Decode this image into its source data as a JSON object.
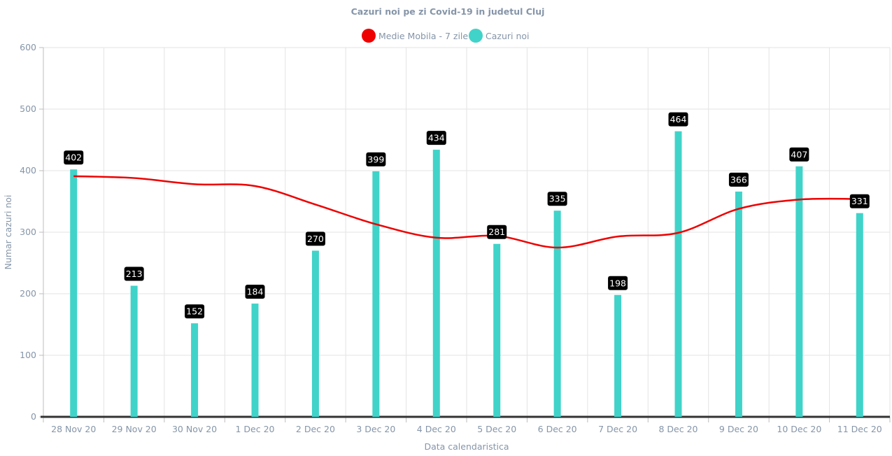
{
  "chart_data": {
    "type": "bar",
    "title": "Cazuri noi pe zi Covid-19 in judetul Cluj",
    "xlabel": "Data calendaristica",
    "ylabel": "Numar cazuri noi",
    "ylim": [
      0,
      600
    ],
    "yticks": [
      "0",
      "100",
      "200",
      "300",
      "400",
      "500",
      "600"
    ],
    "grid": true,
    "legend_position": "top-center",
    "categories": [
      "28 Nov 20",
      "29 Nov 20",
      "30 Nov 20",
      "1 Dec 20",
      "2 Dec 20",
      "3 Dec 20",
      "4 Dec 20",
      "5 Dec 20",
      "6 Dec 20",
      "7 Dec 20",
      "8 Dec 20",
      "9 Dec 20",
      "10 Dec 20",
      "11 Dec 20"
    ],
    "series": [
      {
        "name": "Medie Mobila - 7 zile",
        "type": "line",
        "color": "#ee0000",
        "values": [
          391,
          388,
          378,
          375,
          345,
          313,
          291,
          294,
          275,
          293,
          299,
          338,
          353,
          354
        ]
      },
      {
        "name": "Cazuri noi",
        "type": "bar",
        "color": "#40d3c9",
        "values": [
          402,
          213,
          152,
          184,
          270,
          399,
          434,
          281,
          335,
          198,
          464,
          366,
          407,
          331
        ],
        "data_labels": [
          "402",
          "213",
          "152",
          "184",
          "270",
          "399",
          "434",
          "281",
          "335",
          "198",
          "464",
          "366",
          "407",
          "331"
        ]
      }
    ]
  }
}
